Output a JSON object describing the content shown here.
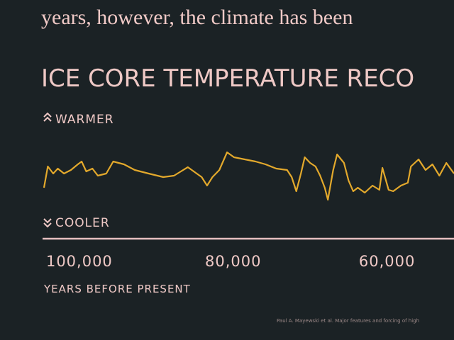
{
  "intro_text": "years, however, the climate has been",
  "chart_data": {
    "type": "line",
    "title": "ICE CORE TEMPERATURE RECO",
    "warmer_label": "WARMER",
    "cooler_label": "COOLER",
    "xlabel": "YEARS BEFORE PRESENT",
    "source": "Paul A. Mayewski et al. Major features and forcing of high",
    "x": [
      104600,
      104100,
      103400,
      102800,
      102000,
      101100,
      100200,
      99700,
      99100,
      98300,
      97600,
      96500,
      95600,
      94200,
      92800,
      91000,
      89100,
      87700,
      86800,
      85900,
      85000,
      84100,
      83400,
      82700,
      81800,
      80800,
      79900,
      78500,
      77100,
      75800,
      74400,
      73000,
      72400,
      71800,
      71200,
      70700,
      70000,
      69300,
      68700,
      68100,
      67700,
      67000,
      66500,
      65600,
      65000,
      64400,
      63800,
      62900,
      61900,
      61000,
      60600,
      59800,
      59200,
      58200,
      57300,
      56900,
      55900,
      55000,
      54100,
      53200,
      52300,
      51300
    ],
    "series": [
      {
        "color": "#e3a92c",
        "values": [
          35,
          65,
          55,
          62,
          55,
          60,
          68,
          72,
          58,
          62,
          52,
          55,
          72,
          68,
          60,
          55,
          50,
          52,
          58,
          64,
          57,
          50,
          38,
          50,
          60,
          85,
          78,
          75,
          72,
          68,
          62,
          60,
          50,
          30,
          55,
          78,
          70,
          65,
          52,
          35,
          18,
          60,
          82,
          70,
          45,
          30,
          35,
          28,
          38,
          32,
          63,
          32,
          30,
          38,
          42,
          65,
          75,
          60,
          68,
          52,
          70,
          55
        ]
      }
    ],
    "xlim": [
      104600,
      51300
    ],
    "ylim": [
      0,
      100
    ],
    "xticks": [
      {
        "value": 100000,
        "label": "100,000"
      },
      {
        "value": 80000,
        "label": "80,000"
      },
      {
        "value": 60000,
        "label": "60,000"
      }
    ]
  }
}
